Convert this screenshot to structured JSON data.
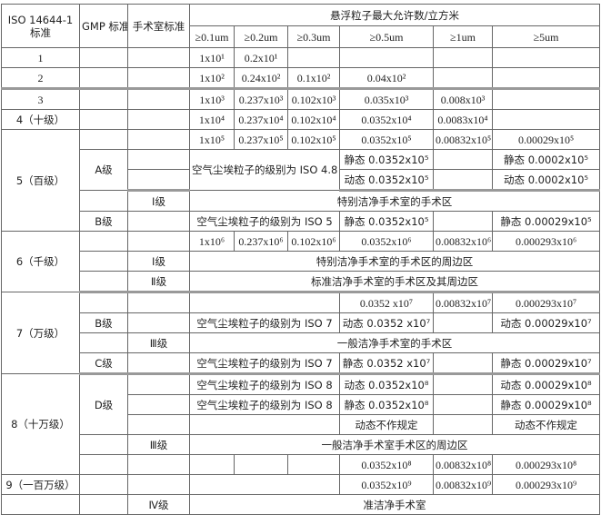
{
  "header": {
    "iso": "ISO 14644-1 标准",
    "gmp": "GMP 标准",
    "or": "手术室标准",
    "group": "悬浮粒子最大允许数/立方米",
    "sizes": [
      "≥0.1um",
      "≥0.2um",
      "≥0.3um",
      "≥0.5um",
      "≥1um",
      "≥5um"
    ]
  },
  "rows": {
    "r1": [
      "1",
      "1x10¹",
      "0.2x10¹"
    ],
    "r2": [
      "2",
      "1x10²",
      "0.24x10²",
      "0.1x10²",
      "0.04x10²"
    ],
    "r3": [
      "3",
      "1x10³",
      "0.237x10³",
      "0.102x10³",
      "0.035x10³",
      "0.008x10³"
    ],
    "r4": [
      "4（十级）",
      "1x10⁴",
      "0.237x10⁴",
      "0.102x10⁴",
      "0.0352x10⁴",
      "0.0083x10⁴"
    ],
    "r5": [
      "5（百级）",
      "1x10⁵",
      "0.237x10⁵",
      "0.102x10⁵",
      "0.0352x10⁵",
      "0.00832x10⁵",
      "0.00029x10⁵"
    ],
    "r6": [
      "A级",
      "空气尘埃粒子的级别为 ISO 4.8",
      "静态 0.0352x10⁵",
      "静态 0.0002x10⁵"
    ],
    "r7": [
      "动态 0.0352x10⁵",
      "动态 0.0002x10⁵"
    ],
    "r8": [
      "Ⅰ级",
      "特别洁净手术室的手术区"
    ],
    "r9": [
      "B级",
      "空气尘埃粒子的级别为 ISO 5",
      "静态 0.0352x10⁵",
      "静态 0.00029x10⁵"
    ],
    "r10": [
      "6（千级）",
      "1x10⁶",
      "0.237x10⁶",
      "0.102x10⁶",
      "0.0352x10⁶",
      "0.00832x10⁶",
      "0.000293x10⁶"
    ],
    "r11": [
      "Ⅰ级",
      "特别洁净手术室的手术区的周边区"
    ],
    "r12": [
      "Ⅱ级",
      "标准洁净手术室的手术区及其周边区"
    ],
    "r13": [
      "7（万级）",
      "0.0352 x10⁷",
      "0.00832x10⁷",
      "0.000293x10⁷"
    ],
    "r14": [
      "B级",
      "空气尘埃粒子的级别为 ISO 7",
      "动态 0.0352 x10⁷",
      "动态 0.00029x10⁷"
    ],
    "r15": [
      "Ⅲ级",
      "一般洁净手术室的手术区"
    ],
    "r16": [
      "C级",
      "空气尘埃粒子的级别为 ISO 7",
      "静态 0.0352 x10⁷",
      "静态 0.00029x10⁷"
    ],
    "r17": [
      "8（十万级）",
      "D级",
      "空气尘埃粒子的级别为 ISO 8",
      "动态 0.0352x10⁸",
      "动态 0.00029x10⁸"
    ],
    "r18": [
      "空气尘埃粒子的级别为 ISO 8",
      "静态 0.0352x10⁸",
      "静态 0.00029x10⁸"
    ],
    "r19": [
      "动态不作规定",
      "动态不作规定"
    ],
    "r20": [
      "Ⅲ级",
      "一般洁净手术室手术区的周边区"
    ],
    "r21": [
      "0.0352x10⁸",
      "0.00832x10⁸",
      "0.000293x10⁸"
    ],
    "r22": [
      "9（一百万级）",
      "0.0352x10⁹",
      "0.00832x10⁹",
      "0.000293x10⁹"
    ],
    "r23": [
      "Ⅳ级",
      "准洁净手术室"
    ]
  }
}
